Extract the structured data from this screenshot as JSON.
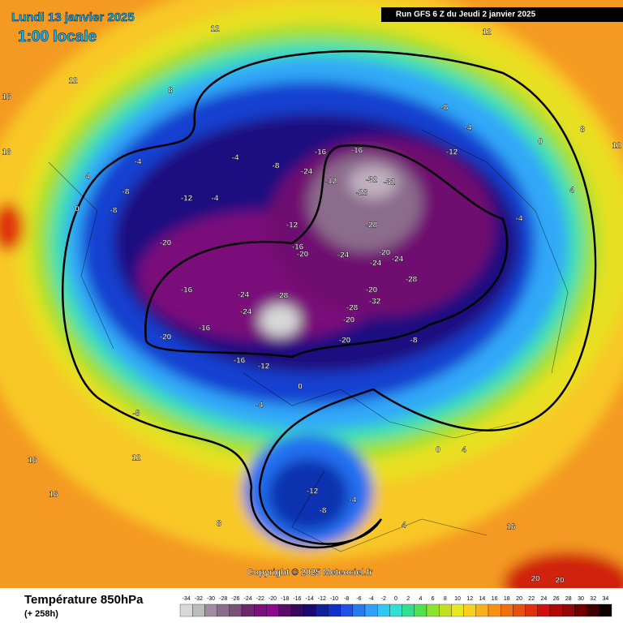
{
  "header": {
    "date": "Lundi 13 janvier 2025",
    "time": "1:00 locale",
    "run": "Run GFS 6 Z du Jeudi 2 janvier 2025"
  },
  "footer": {
    "title": "Température 850hPa",
    "lead": "(+ 258h)",
    "copyright": "Copyright © 2025 Meteociel.fr"
  },
  "legend": {
    "ticks": [
      -34,
      -32,
      -30,
      -28,
      -26,
      -24,
      -22,
      -20,
      -18,
      -16,
      -14,
      -12,
      -10,
      -8,
      -6,
      -4,
      -2,
      0,
      2,
      4,
      6,
      8,
      10,
      12,
      14,
      16,
      18,
      20,
      22,
      24,
      26,
      28,
      30,
      32,
      34
    ],
    "colors": [
      "#d8d8d8",
      "#bcbcbc",
      "#a08ca0",
      "#8c6c8c",
      "#785078",
      "#6a2a6a",
      "#7a107a",
      "#8a0a8a",
      "#5a0a6a",
      "#3a0a5a",
      "#1a0a70",
      "#10209a",
      "#1030c8",
      "#2050e8",
      "#2878f0",
      "#30a0f8",
      "#30c8f0",
      "#30e0d0",
      "#30e090",
      "#50e050",
      "#90e030",
      "#c0e020",
      "#e8e820",
      "#f8d020",
      "#f8b020",
      "#f89018",
      "#f07010",
      "#e85010",
      "#e03010",
      "#d01010",
      "#b00808",
      "#900808",
      "#700000",
      "#400000",
      "#100000"
    ]
  },
  "contour_labels": [
    12,
    12,
    12,
    8,
    16,
    16,
    4,
    0,
    -4,
    -8,
    -4,
    -8,
    -12,
    -12,
    -8,
    -4,
    -16,
    -16,
    -12,
    -24,
    -32,
    -32,
    -28,
    -28,
    -16,
    -20,
    -20,
    -24,
    -24,
    -20,
    -28,
    -24,
    -20,
    -16,
    -16,
    -20,
    -20,
    -24,
    -28,
    -32,
    -24,
    -20,
    -28,
    -16,
    -12,
    -8,
    -4,
    0,
    -8,
    -12,
    -8,
    -4,
    4,
    8,
    12,
    16,
    16,
    20,
    20,
    16,
    -12,
    -8,
    -4,
    0,
    4,
    8,
    12,
    4,
    0,
    -4
  ]
}
